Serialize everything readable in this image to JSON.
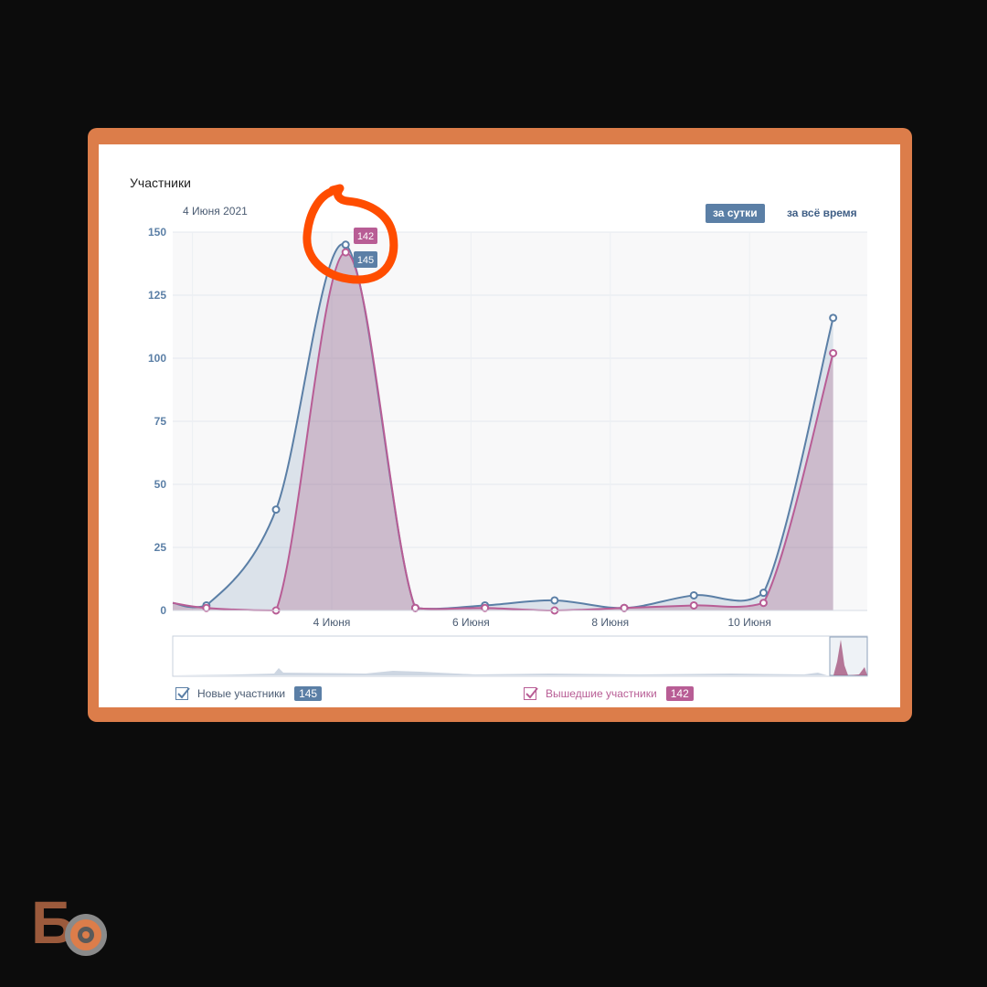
{
  "title": "Участники",
  "date_label": "4 Июня 2021",
  "buttons": {
    "per_day": "за сутки",
    "all_time": "за всё время"
  },
  "legend": [
    {
      "label": "Новые участники",
      "value": "145",
      "color": "#5b7fa6"
    },
    {
      "label": "Вышедшие участники",
      "value": "142",
      "color": "#b85d95"
    }
  ],
  "tooltips": {
    "upper": "142",
    "lower": "145"
  },
  "chart_data": {
    "type": "area",
    "y_ticks": [
      "150",
      "125",
      "100",
      "75",
      "50",
      "25",
      "0"
    ],
    "x_ticks": [
      "4 Июня",
      "6 Июня",
      "8 Июня",
      "10 Июня"
    ],
    "ylim": [
      0,
      150
    ],
    "grid": true,
    "series": [
      {
        "name": "Новые участники",
        "color": "#5b7fa6",
        "points": [
          [
            2.2,
            2
          ],
          [
            3.2,
            40
          ],
          [
            4.2,
            145
          ],
          [
            5.2,
            1
          ],
          [
            6.2,
            2
          ],
          [
            7.2,
            4
          ],
          [
            8.2,
            1
          ],
          [
            9.2,
            6
          ],
          [
            10.2,
            7
          ],
          [
            11.2,
            116
          ]
        ]
      },
      {
        "name": "Вышедшие участники",
        "color": "#b85d95",
        "points": [
          [
            2.2,
            1
          ],
          [
            3.2,
            0
          ],
          [
            4.2,
            142
          ],
          [
            5.2,
            1
          ],
          [
            6.2,
            1
          ],
          [
            7.2,
            0
          ],
          [
            8.2,
            1
          ],
          [
            9.2,
            2
          ],
          [
            10.2,
            3
          ],
          [
            11.2,
            102
          ]
        ]
      }
    ]
  },
  "logo_text": "Б"
}
